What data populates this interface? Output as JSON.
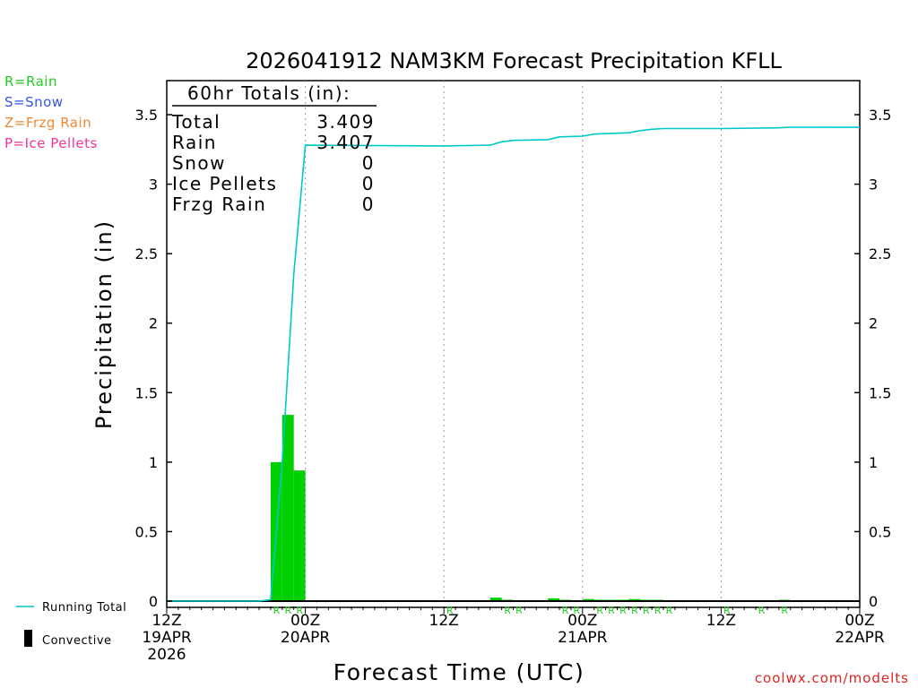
{
  "chart_data": {
    "type": "bar",
    "title": "2026041912 NAM3KM Forecast Precipitation KFLL",
    "xlabel": "Forecast Time (UTC)",
    "ylabel": "Precipitation (in)",
    "ylim": [
      0,
      3.75
    ],
    "xlim": [
      0,
      60
    ],
    "y_ticks": [
      "0",
      "0.5",
      "1",
      "1.5",
      "2",
      "2.5",
      "3",
      "3.5"
    ],
    "x_ticks": [
      {
        "hour": 0,
        "lines": [
          "12Z",
          "19APR",
          "2026"
        ]
      },
      {
        "hour": 12,
        "lines": [
          "00Z",
          "20APR"
        ]
      },
      {
        "hour": 24,
        "lines": [
          "12Z"
        ]
      },
      {
        "hour": 36,
        "lines": [
          "00Z",
          "21APR"
        ]
      },
      {
        "hour": 48,
        "lines": [
          "12Z"
        ]
      },
      {
        "hour": 60,
        "lines": [
          "00Z",
          "22APR"
        ]
      }
    ],
    "gridlines_x_hours": [
      12,
      24,
      36,
      48
    ],
    "legend_types": [
      {
        "text": "R=Rain",
        "color": "#22cc22"
      },
      {
        "text": "S=Snow",
        "color": "#3355ee"
      },
      {
        "text": "Z=Frzg Rain",
        "color": "#ee8833"
      },
      {
        "text": "P=Ice Pellets",
        "color": "#ee3399"
      }
    ],
    "legend_lines": [
      {
        "text": "Running Total",
        "color": "#00c8c8"
      },
      {
        "text": "Convective",
        "color": "#000000"
      }
    ],
    "totals_box": {
      "header": "60hr Totals (in):",
      "rows": [
        {
          "label": "Total",
          "value": "3.409"
        },
        {
          "label": "Rain",
          "value": "3.407"
        },
        {
          "label": "Snow",
          "value": "0"
        },
        {
          "label": "Ice Pellets",
          "value": "0"
        },
        {
          "label": "Frzg Rain",
          "value": "0"
        }
      ]
    },
    "series": [
      {
        "name": "Rain",
        "color": "#00d000",
        "bars": [
          {
            "hour": 10,
            "value": 1.0
          },
          {
            "hour": 11,
            "value": 1.34
          },
          {
            "hour": 12,
            "value": 0.94
          },
          {
            "hour": 29,
            "value": 0.025
          },
          {
            "hour": 30,
            "value": 0.01
          },
          {
            "hour": 34,
            "value": 0.02
          },
          {
            "hour": 35,
            "value": 0.005
          },
          {
            "hour": 37,
            "value": 0.015
          },
          {
            "hour": 38,
            "value": 0.005
          },
          {
            "hour": 39,
            "value": 0.005
          },
          {
            "hour": 40,
            "value": 0.005
          },
          {
            "hour": 41,
            "value": 0.015
          },
          {
            "hour": 42,
            "value": 0.005
          },
          {
            "hour": 43,
            "value": 0.005
          },
          {
            "hour": 54,
            "value": 0.005
          }
        ]
      },
      {
        "name": "Running Total",
        "color": "#00c8c8",
        "points": [
          [
            0,
            0
          ],
          [
            8,
            0
          ],
          [
            9,
            0.01
          ],
          [
            10,
            1.0
          ],
          [
            11,
            2.35
          ],
          [
            12,
            3.28
          ],
          [
            24,
            3.275
          ],
          [
            28,
            3.28
          ],
          [
            29,
            3.305
          ],
          [
            30,
            3.315
          ],
          [
            33,
            3.32
          ],
          [
            34,
            3.34
          ],
          [
            36,
            3.345
          ],
          [
            37,
            3.36
          ],
          [
            40,
            3.37
          ],
          [
            41,
            3.385
          ],
          [
            42,
            3.395
          ],
          [
            43,
            3.4
          ],
          [
            48,
            3.4
          ],
          [
            53,
            3.405
          ],
          [
            54,
            3.41
          ],
          [
            60,
            3.409
          ]
        ]
      }
    ],
    "type_markers": [
      {
        "hour": 9.5,
        "text": "R"
      },
      {
        "hour": 10.5,
        "text": "R"
      },
      {
        "hour": 11.5,
        "text": "R"
      },
      {
        "hour": 24.5,
        "text": "R"
      },
      {
        "hour": 29.5,
        "text": "R"
      },
      {
        "hour": 30.5,
        "text": "R"
      },
      {
        "hour": 34.5,
        "text": "R"
      },
      {
        "hour": 35.5,
        "text": "R"
      },
      {
        "hour": 37.5,
        "text": "R"
      },
      {
        "hour": 38.5,
        "text": "R"
      },
      {
        "hour": 39.5,
        "text": "R"
      },
      {
        "hour": 40.5,
        "text": "R"
      },
      {
        "hour": 41.5,
        "text": "R"
      },
      {
        "hour": 42.5,
        "text": "R"
      },
      {
        "hour": 43.5,
        "text": "R"
      },
      {
        "hour": 48.5,
        "text": "R"
      },
      {
        "hour": 51.5,
        "text": "R"
      },
      {
        "hour": 53.5,
        "text": "R"
      }
    ],
    "credit": "coolwx.com/modelts"
  }
}
